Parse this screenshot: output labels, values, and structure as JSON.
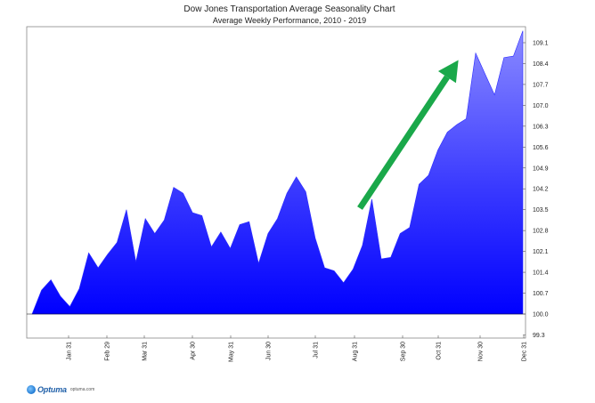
{
  "chart_data": {
    "type": "area",
    "title": "Dow Jones Transportation Average Seasonality Chart",
    "subtitle": "Average Weekly Performance, 2010 - 2019",
    "xlabel": "",
    "ylabel": "",
    "ylim": [
      99.3,
      109.6
    ],
    "baseline": 100.0,
    "x_ticks": [
      "Jan 31",
      "Feb 29",
      "Mar 31",
      "Apr 30",
      "May 31",
      "Jun 30",
      "Jul 31",
      "Aug 31",
      "Sep 30",
      "Oct 31",
      "Nov 30",
      "Dec 31"
    ],
    "y_ticks": [
      "109.1",
      "108.4",
      "107.7",
      "107.0",
      "106.3",
      "105.6",
      "104.9",
      "104.2",
      "103.5",
      "102.8",
      "102.1",
      "101.4",
      "100.7",
      "100.0",
      "99.3"
    ],
    "x": [
      "Jan 1",
      "Jan 8",
      "Jan 15",
      "Jan 22",
      "Jan 29",
      "Feb 5",
      "Feb 12",
      "Feb 19",
      "Feb 26",
      "Mar 5",
      "Mar 12",
      "Mar 19",
      "Mar 26",
      "Apr 2",
      "Apr 9",
      "Apr 16",
      "Apr 23",
      "Apr 30",
      "May 7",
      "May 14",
      "May 21",
      "May 28",
      "Jun 4",
      "Jun 11",
      "Jun 18",
      "Jun 25",
      "Jul 2",
      "Jul 9",
      "Jul 16",
      "Jul 23",
      "Jul 30",
      "Aug 6",
      "Aug 13",
      "Aug 20",
      "Aug 27",
      "Sep 3",
      "Sep 10",
      "Sep 17",
      "Sep 24",
      "Oct 1",
      "Oct 8",
      "Oct 15",
      "Oct 22",
      "Oct 29",
      "Nov 5",
      "Nov 12",
      "Nov 19",
      "Nov 26",
      "Dec 3",
      "Dec 10",
      "Dec 17",
      "Dec 24",
      "Dec 31"
    ],
    "values": [
      100.0,
      100.8,
      101.15,
      100.6,
      100.25,
      100.85,
      102.05,
      101.55,
      102.0,
      102.4,
      103.5,
      101.75,
      103.2,
      102.7,
      103.15,
      104.25,
      104.05,
      103.4,
      103.3,
      102.25,
      102.75,
      102.2,
      103.0,
      103.1,
      101.7,
      102.7,
      103.2,
      104.05,
      104.6,
      104.1,
      102.55,
      101.55,
      101.45,
      101.05,
      101.5,
      102.3,
      103.85,
      101.85,
      101.9,
      102.7,
      102.9,
      104.35,
      104.65,
      105.5,
      106.1,
      106.35,
      106.55,
      108.75,
      108.05,
      107.35,
      108.6,
      108.65,
      109.5
    ],
    "color": "#0000ff",
    "arrow_color": "#1aa84a",
    "annotation": "green arrow pointing up"
  },
  "footer": {
    "brand": "Optuma",
    "url": "optuma.com"
  }
}
